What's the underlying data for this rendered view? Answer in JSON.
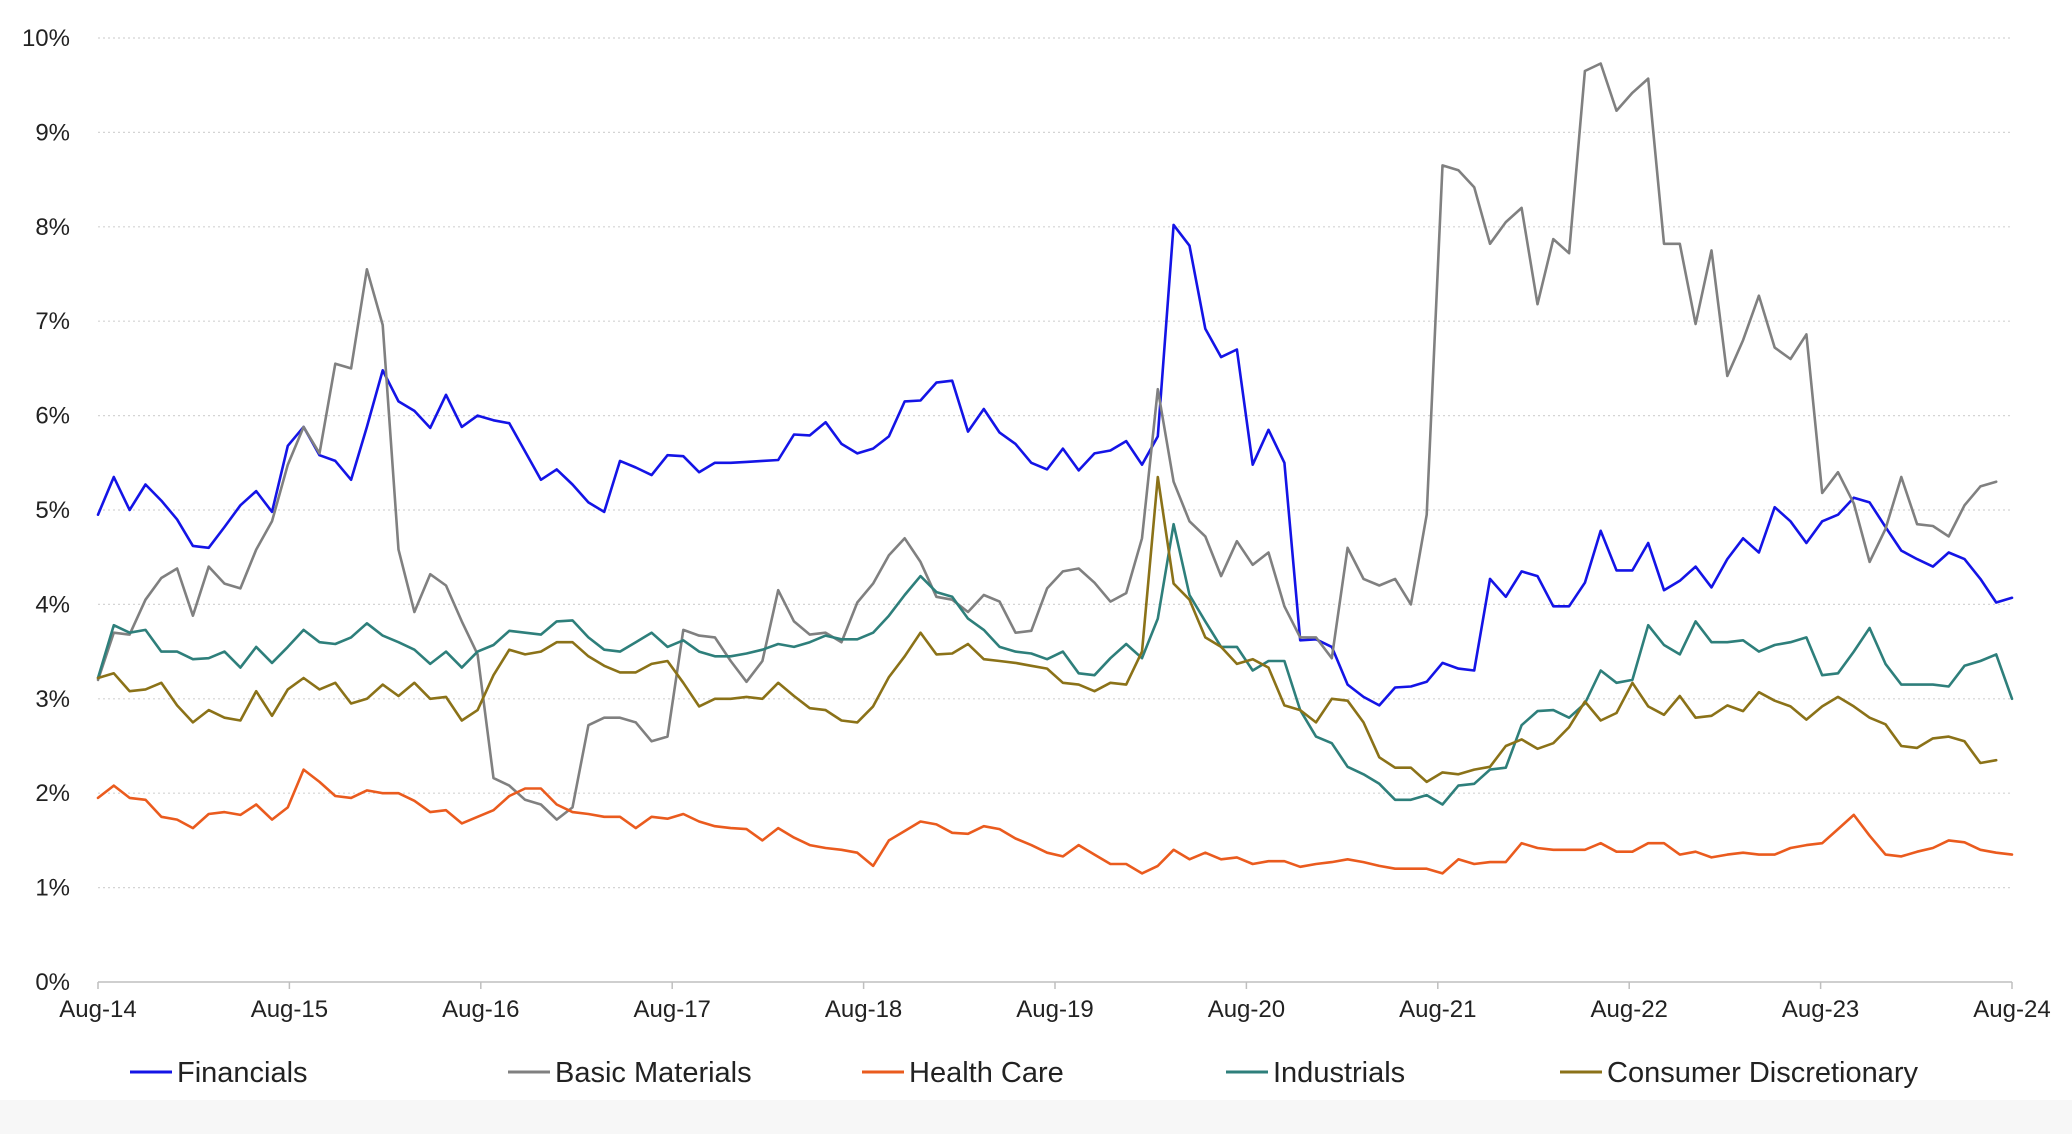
{
  "chart_data": {
    "type": "line",
    "title": "",
    "xlabel": "",
    "ylabel": "",
    "ylim": [
      0,
      10
    ],
    "grid": true,
    "legend_position": "bottom",
    "y_ticks": [
      "0%",
      "1%",
      "2%",
      "3%",
      "4%",
      "5%",
      "6%",
      "7%",
      "8%",
      "9%",
      "10%"
    ],
    "x_ticks": [
      "Aug-14",
      "Aug-15",
      "Aug-16",
      "Aug-17",
      "Aug-18",
      "Aug-19",
      "Aug-20",
      "Aug-21",
      "Aug-22",
      "Aug-23",
      "Aug-24"
    ],
    "x_start": "Aug-14",
    "x_end": "Aug-24",
    "frequency": "monthly",
    "series": [
      {
        "name": "Financials",
        "color": "#1414e6",
        "values": [
          4.95,
          5.35,
          5.0,
          5.27,
          5.1,
          4.9,
          4.62,
          4.6,
          4.82,
          5.05,
          5.2,
          4.98,
          5.68,
          5.88,
          5.58,
          5.52,
          5.32,
          5.88,
          6.48,
          6.15,
          6.05,
          5.87,
          6.22,
          5.88,
          6.0,
          5.95,
          5.92,
          5.62,
          5.32,
          5.43,
          5.27,
          5.08,
          4.98,
          5.52,
          5.45,
          5.37,
          5.58,
          5.57,
          5.4,
          5.5,
          5.5,
          5.51,
          5.52,
          5.53,
          5.8,
          5.79,
          5.93,
          5.7,
          5.6,
          5.65,
          5.78,
          6.15,
          6.16,
          6.35,
          6.37,
          5.83,
          6.07,
          5.82,
          5.7,
          5.5,
          5.43,
          5.65,
          5.42,
          5.6,
          5.63,
          5.73,
          5.48,
          5.78,
          8.02,
          7.8,
          6.92,
          6.62,
          6.7,
          5.48,
          5.85,
          5.5,
          3.62,
          3.63,
          3.55,
          3.15,
          3.02,
          2.93,
          3.12,
          3.13,
          3.18,
          3.38,
          3.32,
          3.3,
          4.27,
          4.08,
          4.35,
          4.3,
          3.98,
          3.98,
          4.23,
          4.78,
          4.36,
          4.36,
          4.65,
          4.15,
          4.25,
          4.4,
          4.18,
          4.48,
          4.7,
          4.55,
          5.03,
          4.88,
          4.65,
          4.88,
          4.95,
          5.13,
          5.08,
          4.82,
          4.57,
          4.48,
          4.4,
          4.55,
          4.48,
          4.27,
          4.02,
          4.07
        ]
      },
      {
        "name": "Basic Materials",
        "color": "#808080",
        "values": [
          3.2,
          3.7,
          3.68,
          4.05,
          4.28,
          4.38,
          3.88,
          4.4,
          4.22,
          4.17,
          4.58,
          4.88,
          5.48,
          5.88,
          5.6,
          6.55,
          6.5,
          7.55,
          6.96,
          4.58,
          3.92,
          4.32,
          4.2,
          3.82,
          3.47,
          2.16,
          2.08,
          1.93,
          1.88,
          1.72,
          1.85,
          2.72,
          2.8,
          2.8,
          2.75,
          2.55,
          2.6,
          3.73,
          3.67,
          3.65,
          3.4,
          3.18,
          3.4,
          4.15,
          3.82,
          3.68,
          3.7,
          3.6,
          4.02,
          4.22,
          4.52,
          4.7,
          4.45,
          4.08,
          4.05,
          3.92,
          4.1,
          4.03,
          3.7,
          3.72,
          4.17,
          4.35,
          4.38,
          4.23,
          4.03,
          4.12,
          4.7,
          6.28,
          5.3,
          4.88,
          4.72,
          4.3,
          4.67,
          4.42,
          4.55,
          3.98,
          3.65,
          3.65,
          3.43,
          4.6,
          4.27,
          4.2,
          4.27,
          4.0,
          4.95,
          8.65,
          8.6,
          8.42,
          7.82,
          8.05,
          8.2,
          7.18,
          7.87,
          7.72,
          9.65,
          9.73,
          9.23,
          9.42,
          9.57,
          7.82,
          7.82,
          6.97,
          7.75,
          6.42,
          6.8,
          7.27,
          6.72,
          6.6,
          6.86,
          5.18,
          5.4,
          5.07,
          4.45,
          4.8,
          5.35,
          4.85,
          4.83,
          4.72,
          5.05,
          5.25,
          5.3
        ]
      },
      {
        "name": "Health Care",
        "color": "#ea5b1e",
        "values": [
          1.95,
          2.08,
          1.95,
          1.93,
          1.75,
          1.72,
          1.63,
          1.78,
          1.8,
          1.77,
          1.88,
          1.72,
          1.85,
          2.25,
          2.12,
          1.97,
          1.95,
          2.03,
          2.0,
          2.0,
          1.92,
          1.8,
          1.82,
          1.68,
          1.75,
          1.82,
          1.97,
          2.05,
          2.05,
          1.88,
          1.8,
          1.78,
          1.75,
          1.75,
          1.63,
          1.75,
          1.73,
          1.78,
          1.7,
          1.65,
          1.63,
          1.62,
          1.5,
          1.63,
          1.53,
          1.45,
          1.42,
          1.4,
          1.37,
          1.23,
          1.5,
          1.6,
          1.7,
          1.67,
          1.58,
          1.57,
          1.65,
          1.62,
          1.52,
          1.45,
          1.37,
          1.33,
          1.45,
          1.35,
          1.25,
          1.25,
          1.15,
          1.23,
          1.4,
          1.3,
          1.37,
          1.3,
          1.32,
          1.25,
          1.28,
          1.28,
          1.22,
          1.25,
          1.27,
          1.3,
          1.27,
          1.23,
          1.2,
          1.2,
          1.2,
          1.15,
          1.3,
          1.25,
          1.27,
          1.27,
          1.47,
          1.42,
          1.4,
          1.4,
          1.4,
          1.47,
          1.38,
          1.38,
          1.47,
          1.47,
          1.35,
          1.38,
          1.32,
          1.35,
          1.37,
          1.35,
          1.35,
          1.42,
          1.45,
          1.47,
          1.62,
          1.77,
          1.55,
          1.35,
          1.33,
          1.38,
          1.42,
          1.5,
          1.48,
          1.4,
          1.37,
          1.35
        ]
      },
      {
        "name": "Industrials",
        "color": "#2e7f7b",
        "values": [
          3.22,
          3.78,
          3.7,
          3.73,
          3.5,
          3.5,
          3.42,
          3.43,
          3.5,
          3.33,
          3.55,
          3.38,
          3.55,
          3.73,
          3.6,
          3.58,
          3.65,
          3.8,
          3.67,
          3.6,
          3.52,
          3.37,
          3.5,
          3.33,
          3.5,
          3.57,
          3.72,
          3.7,
          3.68,
          3.82,
          3.83,
          3.65,
          3.52,
          3.5,
          3.6,
          3.7,
          3.55,
          3.62,
          3.5,
          3.45,
          3.45,
          3.48,
          3.52,
          3.58,
          3.55,
          3.6,
          3.67,
          3.63,
          3.63,
          3.7,
          3.88,
          4.1,
          4.3,
          4.13,
          4.08,
          3.85,
          3.73,
          3.55,
          3.5,
          3.48,
          3.42,
          3.5,
          3.27,
          3.25,
          3.43,
          3.58,
          3.43,
          3.85,
          4.85,
          4.1,
          3.82,
          3.55,
          3.55,
          3.3,
          3.4,
          3.4,
          2.88,
          2.6,
          2.53,
          2.28,
          2.2,
          2.1,
          1.93,
          1.93,
          1.98,
          1.88,
          2.08,
          2.1,
          2.25,
          2.27,
          2.72,
          2.87,
          2.88,
          2.8,
          2.95,
          3.3,
          3.17,
          3.2,
          3.78,
          3.57,
          3.47,
          3.82,
          3.6,
          3.6,
          3.62,
          3.5,
          3.57,
          3.6,
          3.65,
          3.25,
          3.27,
          3.5,
          3.75,
          3.37,
          3.15,
          3.15,
          3.15,
          3.13,
          3.35,
          3.4,
          3.47,
          3.0
        ]
      },
      {
        "name": "Consumer Discretionary",
        "color": "#8b7218",
        "values": [
          3.22,
          3.27,
          3.08,
          3.1,
          3.17,
          2.93,
          2.75,
          2.88,
          2.8,
          2.77,
          3.08,
          2.82,
          3.1,
          3.22,
          3.1,
          3.17,
          2.95,
          3.0,
          3.15,
          3.03,
          3.17,
          3.0,
          3.02,
          2.77,
          2.88,
          3.25,
          3.52,
          3.47,
          3.5,
          3.6,
          3.6,
          3.45,
          3.35,
          3.28,
          3.28,
          3.37,
          3.4,
          3.17,
          2.92,
          3.0,
          3.0,
          3.02,
          3.0,
          3.17,
          3.03,
          2.9,
          2.88,
          2.77,
          2.75,
          2.92,
          3.23,
          3.45,
          3.7,
          3.47,
          3.48,
          3.58,
          3.42,
          3.4,
          3.38,
          3.35,
          3.32,
          3.17,
          3.15,
          3.08,
          3.17,
          3.15,
          3.5,
          5.35,
          4.22,
          4.05,
          3.65,
          3.55,
          3.37,
          3.42,
          3.33,
          2.93,
          2.88,
          2.75,
          3.0,
          2.98,
          2.75,
          2.38,
          2.27,
          2.27,
          2.12,
          2.22,
          2.2,
          2.25,
          2.28,
          2.5,
          2.57,
          2.47,
          2.53,
          2.7,
          2.97,
          2.77,
          2.85,
          3.17,
          2.92,
          2.83,
          3.03,
          2.8,
          2.82,
          2.93,
          2.87,
          3.07,
          2.98,
          2.92,
          2.78,
          2.92,
          3.02,
          2.92,
          2.8,
          2.73,
          2.5,
          2.48,
          2.58,
          2.6,
          2.55,
          2.32,
          2.35
        ]
      }
    ]
  }
}
